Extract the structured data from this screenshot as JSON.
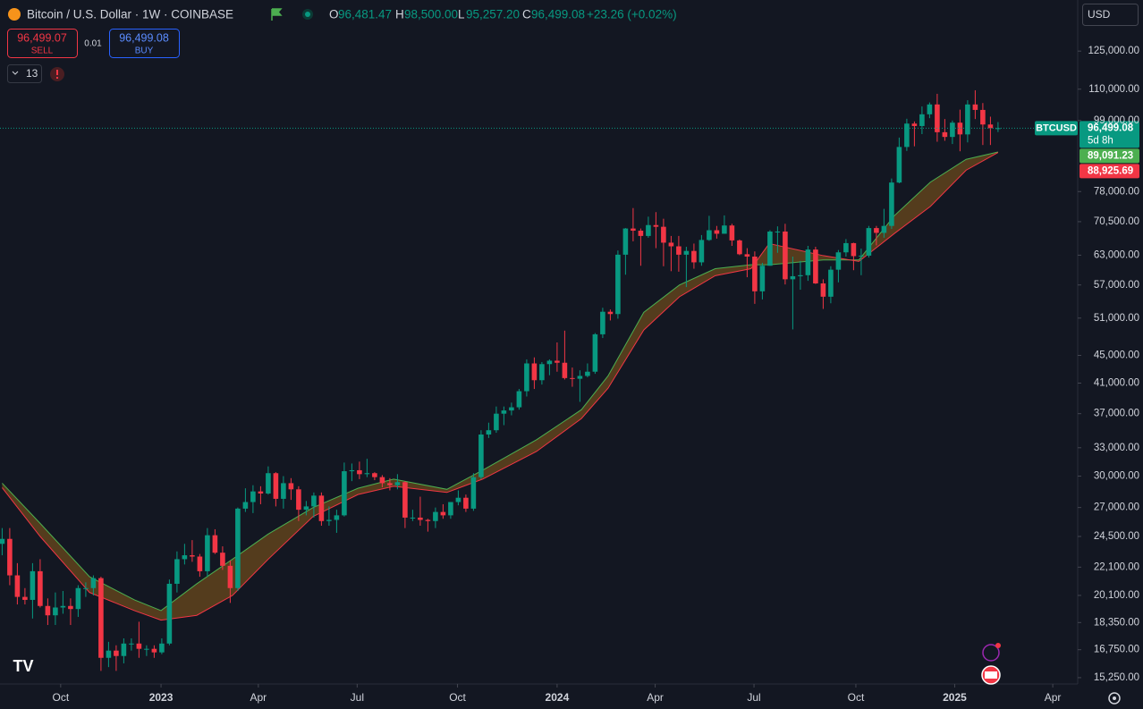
{
  "header": {
    "symbol": "Bitcoin / U.S. Dollar · 1W · COINBASE",
    "ohlc": [
      {
        "key": "O",
        "value": "96,481.47"
      },
      {
        "key": "H",
        "value": "98,500.00"
      },
      {
        "key": "L",
        "value": "95,257.20"
      },
      {
        "key": "C",
        "value": "96,499.08"
      }
    ],
    "change": "+23.26 (+0.02%)"
  },
  "trade": {
    "sell_price": "96,499.07",
    "sell": "SELL",
    "spread": "0.01",
    "buy_price": "96,499.08",
    "buy": "BUY"
  },
  "indicators_count": "13",
  "currency": "USD",
  "chart_data": {
    "type": "candlestick",
    "open": [
      23900,
      24300,
      21500,
      20000,
      19800,
      21800,
      19400,
      18800,
      19300,
      19400,
      19200,
      20600,
      20600,
      21300,
      16300,
      16700,
      16400,
      17100,
      17100,
      16800,
      16800,
      16600,
      17100,
      20900,
      22700,
      23000,
      22900,
      21800,
      24600,
      23200,
      22200,
      20600,
      26900,
      27500,
      28500,
      28300,
      30300,
      27800,
      29300,
      28700,
      26800,
      27100,
      28100,
      25800,
      25900,
      26300,
      30500,
      30600,
      30200,
      30300,
      29900,
      29300,
      29100,
      29400,
      26100,
      26100,
      25900,
      25800,
      26600,
      26300,
      27500,
      27900,
      26900,
      29900,
      34500,
      35000,
      37000,
      37400,
      37800,
      39900,
      43800,
      41400,
      43700,
      44200,
      43900,
      41700,
      41600,
      42000,
      42600,
      48300,
      52100,
      51700,
      63100,
      68900,
      68400,
      67200,
      69700,
      69300,
      65700,
      64900,
      63100,
      63900,
      61500,
      66300,
      68500,
      67700,
      69600,
      66200,
      63200,
      62700,
      55800,
      60800,
      68200,
      68200,
      58100,
      58700,
      58900,
      64200,
      57300,
      54800,
      60000,
      63600,
      65600,
      62800,
      62900,
      69000,
      67900,
      69500,
      80400,
      90600,
      98000,
      97200,
      101100,
      104500,
      95200,
      93700,
      98300,
      94500,
      104500,
      102600,
      97700,
      96481.47
    ],
    "high": [
      25200,
      25200,
      22400,
      20600,
      22400,
      22700,
      19900,
      20300,
      20400,
      19900,
      20800,
      21000,
      21500,
      21400,
      17200,
      17000,
      17400,
      17400,
      18400,
      17000,
      17000,
      17400,
      21200,
      23300,
      23900,
      24200,
      23100,
      25200,
      25100,
      23700,
      22600,
      27000,
      28800,
      29100,
      29000,
      31000,
      30400,
      30000,
      29800,
      29000,
      27600,
      28400,
      28400,
      27100,
      26800,
      31400,
      31300,
      31500,
      31800,
      30400,
      30100,
      29800,
      30200,
      29500,
      26800,
      28000,
      26000,
      27000,
      27300,
      27500,
      28600,
      28200,
      30300,
      35000,
      35900,
      37900,
      37900,
      38400,
      40200,
      44400,
      44700,
      44000,
      44400,
      47000,
      48900,
      43200,
      42800,
      43800,
      48500,
      52800,
      52500,
      64000,
      69000,
      73800,
      68900,
      71700,
      72800,
      71200,
      67200,
      67200,
      64800,
      65500,
      67400,
      71900,
      69500,
      72000,
      70000,
      66400,
      64500,
      63800,
      61400,
      68500,
      69400,
      70000,
      62700,
      61800,
      65000,
      64800,
      58100,
      60700,
      64100,
      66500,
      65700,
      64400,
      69500,
      69500,
      73600,
      81500,
      93500,
      99600,
      98700,
      103800,
      105200,
      108300,
      99500,
      99000,
      102700,
      106000,
      109600,
      105000,
      100300,
      98500
    ],
    "low": [
      23000,
      20800,
      19500,
      19500,
      18600,
      19300,
      18200,
      18200,
      18900,
      18200,
      18700,
      20000,
      20100,
      15600,
      15800,
      15600,
      16000,
      16700,
      16300,
      16400,
      16300,
      16500,
      17000,
      20300,
      22300,
      22500,
      21400,
      21400,
      23100,
      21900,
      19600,
      20400,
      26600,
      26500,
      27300,
      28200,
      27100,
      26900,
      27700,
      25800,
      26300,
      26100,
      25400,
      25400,
      24800,
      26200,
      29500,
      29700,
      29900,
      29600,
      28900,
      28600,
      28700,
      25200,
      25800,
      25400,
      24900,
      25200,
      26000,
      26000,
      27200,
      26600,
      26700,
      29700,
      34100,
      34700,
      35600,
      36800,
      37500,
      39200,
      40200,
      40800,
      42100,
      42600,
      41500,
      40500,
      38500,
      41800,
      42300,
      47700,
      50600,
      50900,
      59000,
      66000,
      60800,
      66800,
      64500,
      60700,
      59700,
      59600,
      56600,
      60200,
      60800,
      66100,
      66600,
      67700,
      65000,
      63000,
      58500,
      53500,
      54300,
      60800,
      63500,
      57100,
      49100,
      56100,
      57800,
      57200,
      52600,
      53600,
      57500,
      62700,
      59900,
      58900,
      62500,
      65100,
      66800,
      68800,
      80200,
      89400,
      90800,
      94600,
      99800,
      92200,
      92500,
      91500,
      89300,
      92000,
      99500,
      91200,
      91200,
      95257.2
    ],
    "close": [
      24300,
      21500,
      20000,
      19800,
      21800,
      19400,
      18800,
      19300,
      19400,
      19200,
      20600,
      20600,
      21300,
      16300,
      16700,
      16400,
      17100,
      17100,
      16800,
      16800,
      16600,
      17100,
      20900,
      22700,
      23000,
      22900,
      21800,
      24600,
      23200,
      22200,
      20600,
      26900,
      27500,
      28500,
      28300,
      30300,
      27800,
      29300,
      28700,
      26800,
      27100,
      28100,
      25800,
      25900,
      26300,
      30500,
      30600,
      30200,
      30300,
      29900,
      29300,
      29100,
      29400,
      26100,
      26100,
      25900,
      25800,
      26600,
      26300,
      27500,
      27900,
      26900,
      29900,
      34500,
      35000,
      37000,
      37400,
      37800,
      39900,
      43800,
      41400,
      43700,
      44200,
      43900,
      41700,
      41600,
      42000,
      42600,
      48300,
      52100,
      51700,
      63100,
      68900,
      68400,
      67200,
      69700,
      69300,
      65700,
      64900,
      63100,
      63900,
      61500,
      66300,
      68500,
      67700,
      69600,
      66200,
      63200,
      62700,
      55800,
      60800,
      68200,
      68200,
      58100,
      58700,
      58900,
      64200,
      57300,
      54800,
      60000,
      63600,
      65600,
      62800,
      62900,
      69000,
      67900,
      69500,
      80400,
      90600,
      98000,
      97200,
      101100,
      104500,
      95200,
      93700,
      98300,
      94500,
      104500,
      102600,
      97700,
      96500,
      96499.08
    ],
    "up_color": "#089981",
    "down_color": "#f23645",
    "log_scale": true,
    "ylim": [
      14930,
      148400
    ],
    "yticks": [
      {
        "value": 125000,
        "label": "125,000.00"
      },
      {
        "value": 110000,
        "label": "110,000.00"
      },
      {
        "value": 99000,
        "label": "99,000.00"
      },
      {
        "value": 78000,
        "label": "78,000.00"
      },
      {
        "value": 70500,
        "label": "70,500.00"
      },
      {
        "value": 63000,
        "label": "63,000.00"
      },
      {
        "value": 57000,
        "label": "57,000.00"
      },
      {
        "value": 51000,
        "label": "51,000.00"
      },
      {
        "value": 45000,
        "label": "45,000.00"
      },
      {
        "value": 41000,
        "label": "41,000.00"
      },
      {
        "value": 37000,
        "label": "37,000.00"
      },
      {
        "value": 33000,
        "label": "33,000.00"
      },
      {
        "value": 30000,
        "label": "30,000.00"
      },
      {
        "value": 27000,
        "label": "27,000.00"
      },
      {
        "value": 24500,
        "label": "24,500.00"
      },
      {
        "value": 22100,
        "label": "22,100.00"
      },
      {
        "value": 20100,
        "label": "20,100.00"
      },
      {
        "value": 18350,
        "label": "18,350.00"
      },
      {
        "value": 16750,
        "label": "16,750.00"
      },
      {
        "value": 15250,
        "label": "15,250.00"
      }
    ],
    "xticks": [
      {
        "value": 7.7,
        "label": "Oct"
      },
      {
        "value": 20.9,
        "label": "2023"
      },
      {
        "value": 33.7,
        "label": "Apr"
      },
      {
        "value": 46.7,
        "label": "Jul"
      },
      {
        "value": 59.9,
        "label": "Oct"
      },
      {
        "value": 73,
        "label": "2024"
      },
      {
        "value": 85.9,
        "label": "Apr"
      },
      {
        "value": 98.9,
        "label": "Jul"
      },
      {
        "value": 112.3,
        "label": "Oct"
      },
      {
        "value": 125.3,
        "label": "2025"
      },
      {
        "value": 138.2,
        "label": "Apr"
      }
    ],
    "last_price": {
      "symbol": "BTCUSD",
      "label": "96,499.08",
      "countdown": "5d 8h",
      "color": "#089981"
    },
    "band_color": "#6b4a1c",
    "series": [
      {
        "color": "#4caf50",
        "last_label": "89,091.23",
        "x": [
          0,
          5,
          11.5,
          17.4,
          20.9,
          25.6,
          30.3,
          35,
          40.9,
          46.8,
          51.5,
          58.5,
          63.2,
          70.3,
          76.2,
          79.7,
          84.4,
          89.1,
          93.8,
          98.5,
          100.9,
          108,
          112.7,
          117.4,
          122.1,
          126.8,
          131
        ],
        "values": [
          29300,
          25600,
          21400,
          19800,
          19100,
          20900,
          22700,
          24700,
          27000,
          28800,
          29700,
          28700,
          30600,
          33900,
          37500,
          42000,
          52000,
          57000,
          60200,
          61000,
          61000,
          62000,
          62000,
          72000,
          80500,
          86900,
          89091.23
        ]
      },
      {
        "color": "#f23645",
        "last_label": "88,925.69",
        "x": [
          0,
          5,
          11.5,
          17.4,
          20.9,
          25.6,
          30.3,
          35,
          40.9,
          46.8,
          51.5,
          58.5,
          63.2,
          70.3,
          76.2,
          79.7,
          84.4,
          89.1,
          93.8,
          98.5,
          100.9,
          108,
          112.7,
          117.4,
          122.1,
          126.8,
          131
        ],
        "values": [
          28860,
          24500,
          20300,
          19100,
          18500,
          18800,
          20100,
          22700,
          26200,
          28200,
          29000,
          28400,
          29700,
          32600,
          36400,
          40300,
          49000,
          54800,
          58800,
          60200,
          65500,
          62900,
          61700,
          67800,
          74200,
          83800,
          88925.69
        ]
      }
    ]
  }
}
